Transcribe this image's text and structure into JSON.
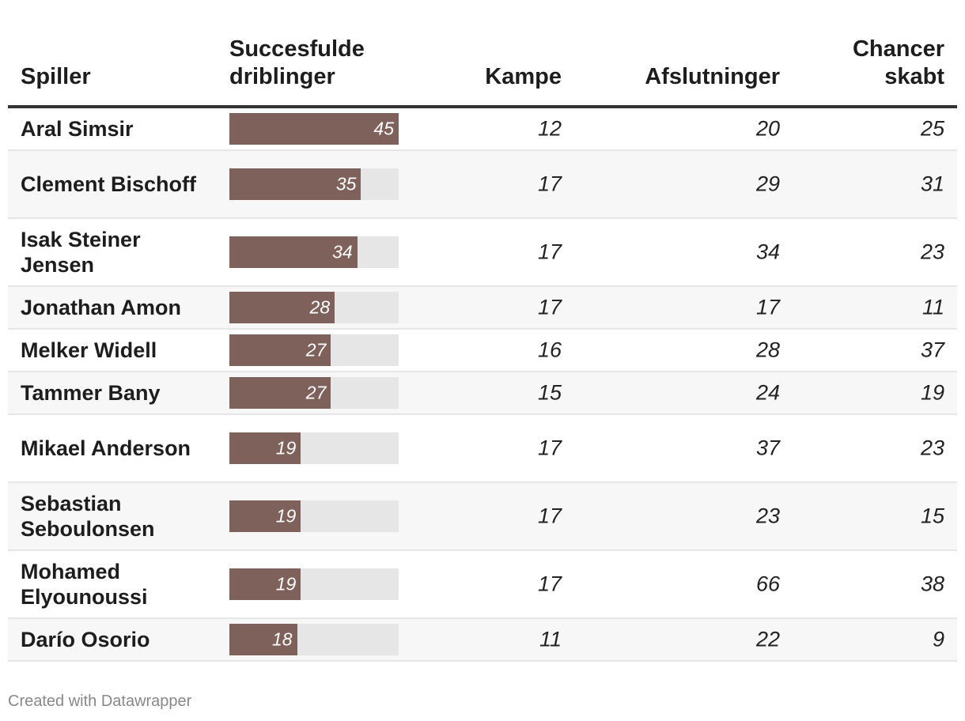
{
  "chart_data": {
    "type": "table",
    "columns": [
      "Spiller",
      "Succesfulde driblinger",
      "Kampe",
      "Afslutninger",
      "Chancer skabt"
    ],
    "bar_max": 45,
    "rows": [
      {
        "name": "Aral Simsir",
        "driblinger": 45,
        "kampe": 12,
        "afslutninger": 20,
        "chancer": 25
      },
      {
        "name": "Clement Bischoff",
        "driblinger": 35,
        "kampe": 17,
        "afslutninger": 29,
        "chancer": 31
      },
      {
        "name": "Isak Steiner Jensen",
        "driblinger": 34,
        "kampe": 17,
        "afslutninger": 34,
        "chancer": 23
      },
      {
        "name": "Jonathan Amon",
        "driblinger": 28,
        "kampe": 17,
        "afslutninger": 17,
        "chancer": 11
      },
      {
        "name": "Melker Widell",
        "driblinger": 27,
        "kampe": 16,
        "afslutninger": 28,
        "chancer": 37
      },
      {
        "name": "Tammer Bany",
        "driblinger": 27,
        "kampe": 15,
        "afslutninger": 24,
        "chancer": 19
      },
      {
        "name": "Mikael Anderson",
        "driblinger": 19,
        "kampe": 17,
        "afslutninger": 37,
        "chancer": 23
      },
      {
        "name": "Sebastian Seboulonsen",
        "driblinger": 19,
        "kampe": 17,
        "afslutninger": 23,
        "chancer": 15
      },
      {
        "name": "Mohamed Elyounoussi",
        "driblinger": 19,
        "kampe": 17,
        "afslutninger": 66,
        "chancer": 38
      },
      {
        "name": "Darío Osorio",
        "driblinger": 18,
        "kampe": 11,
        "afslutninger": 22,
        "chancer": 9
      }
    ]
  },
  "headers": {
    "spiller": "Spiller",
    "driblinger": "Succesfulde driblinger",
    "kampe": "Kampe",
    "afslutninger": "Afslutninger",
    "chancer": "Chancer skabt"
  },
  "colors": {
    "bar": "#7e615a",
    "track": "#e6e6e6"
  },
  "footer": "Created with Datawrapper"
}
